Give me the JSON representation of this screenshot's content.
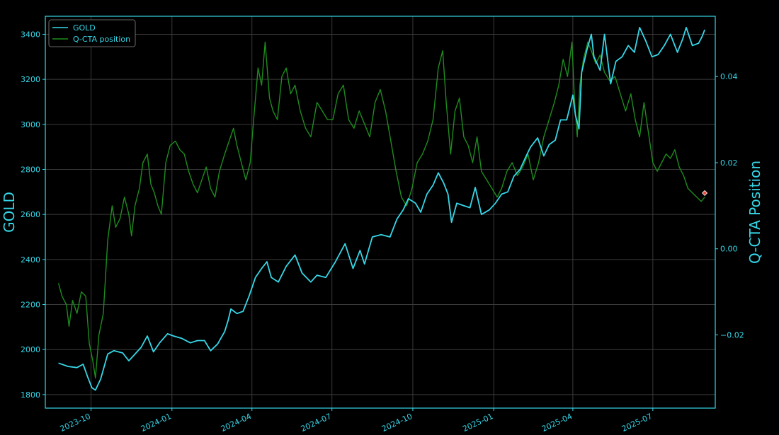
{
  "chart_data": {
    "type": "line",
    "title": "",
    "xlabel": "",
    "ylabel_left": "GOLD",
    "ylabel_right": "Q-CTA Position",
    "xlim": [
      "2023-08-10",
      "2025-09-10"
    ],
    "ylim_left": [
      1740,
      3480
    ],
    "ylim_right": [
      -0.037,
      0.054
    ],
    "x_ticks": [
      "2023-10",
      "2024-01",
      "2024-04",
      "2024-07",
      "2024-10",
      "2025-01",
      "2025-04",
      "2025-07"
    ],
    "x_tick_dates": [
      "2023-10-01",
      "2024-01-01",
      "2024-04-01",
      "2024-07-01",
      "2024-10-01",
      "2025-01-01",
      "2025-04-01",
      "2025-07-01"
    ],
    "y_ticks_left": [
      1800,
      2000,
      2200,
      2400,
      2600,
      2800,
      3000,
      3200,
      3400
    ],
    "y_ticks_right": [
      -0.02,
      0.0,
      0.02,
      0.04
    ],
    "y_tick_labels_right": [
      "−0.02",
      "0.00",
      "0.02",
      "0.04"
    ],
    "grid": true,
    "legend_position": "top-left",
    "colors": {
      "background": "#000000",
      "gold": "#36d7e8",
      "cta": "#1e8c1e",
      "axis": "#36d7e8",
      "grid": "#3a3a3a",
      "marker": "#e8463c"
    },
    "series": [
      {
        "name": "GOLD",
        "axis": "left",
        "points": [
          [
            "2023-08-25",
            1940
          ],
          [
            "2023-09-05",
            1925
          ],
          [
            "2023-09-15",
            1920
          ],
          [
            "2023-09-22",
            1935
          ],
          [
            "2023-09-27",
            1880
          ],
          [
            "2023-10-02",
            1830
          ],
          [
            "2023-10-06",
            1820
          ],
          [
            "2023-10-12",
            1870
          ],
          [
            "2023-10-20",
            1980
          ],
          [
            "2023-10-27",
            1995
          ],
          [
            "2023-11-06",
            1985
          ],
          [
            "2023-11-13",
            1950
          ],
          [
            "2023-11-20",
            1980
          ],
          [
            "2023-11-27",
            2010
          ],
          [
            "2023-12-04",
            2060
          ],
          [
            "2023-12-11",
            1990
          ],
          [
            "2023-12-18",
            2030
          ],
          [
            "2023-12-27",
            2070
          ],
          [
            "2024-01-03",
            2060
          ],
          [
            "2024-01-12",
            2050
          ],
          [
            "2024-01-22",
            2030
          ],
          [
            "2024-01-30",
            2040
          ],
          [
            "2024-02-07",
            2040
          ],
          [
            "2024-02-14",
            1995
          ],
          [
            "2024-02-22",
            2025
          ],
          [
            "2024-03-01",
            2080
          ],
          [
            "2024-03-05",
            2130
          ],
          [
            "2024-03-08",
            2180
          ],
          [
            "2024-03-15",
            2160
          ],
          [
            "2024-03-22",
            2170
          ],
          [
            "2024-03-29",
            2240
          ],
          [
            "2024-04-05",
            2320
          ],
          [
            "2024-04-12",
            2360
          ],
          [
            "2024-04-18",
            2390
          ],
          [
            "2024-04-23",
            2320
          ],
          [
            "2024-05-01",
            2300
          ],
          [
            "2024-05-10",
            2370
          ],
          [
            "2024-05-20",
            2420
          ],
          [
            "2024-05-28",
            2340
          ],
          [
            "2024-06-07",
            2300
          ],
          [
            "2024-06-14",
            2330
          ],
          [
            "2024-06-24",
            2320
          ],
          [
            "2024-07-05",
            2390
          ],
          [
            "2024-07-16",
            2470
          ],
          [
            "2024-07-25",
            2360
          ],
          [
            "2024-08-02",
            2440
          ],
          [
            "2024-08-07",
            2380
          ],
          [
            "2024-08-16",
            2500
          ],
          [
            "2024-08-26",
            2510
          ],
          [
            "2024-09-05",
            2500
          ],
          [
            "2024-09-13",
            2580
          ],
          [
            "2024-09-20",
            2620
          ],
          [
            "2024-09-26",
            2670
          ],
          [
            "2024-10-04",
            2650
          ],
          [
            "2024-10-10",
            2610
          ],
          [
            "2024-10-17",
            2690
          ],
          [
            "2024-10-24",
            2730
          ],
          [
            "2024-10-30",
            2785
          ],
          [
            "2024-11-05",
            2740
          ],
          [
            "2024-11-10",
            2690
          ],
          [
            "2024-11-14",
            2565
          ],
          [
            "2024-11-20",
            2650
          ],
          [
            "2024-11-27",
            2640
          ],
          [
            "2024-12-05",
            2630
          ],
          [
            "2024-12-11",
            2720
          ],
          [
            "2024-12-18",
            2600
          ],
          [
            "2024-12-27",
            2620
          ],
          [
            "2025-01-03",
            2650
          ],
          [
            "2025-01-10",
            2690
          ],
          [
            "2025-01-17",
            2700
          ],
          [
            "2025-01-24",
            2770
          ],
          [
            "2025-01-31",
            2800
          ],
          [
            "2025-02-07",
            2860
          ],
          [
            "2025-02-12",
            2900
          ],
          [
            "2025-02-20",
            2940
          ],
          [
            "2025-02-27",
            2860
          ],
          [
            "2025-03-05",
            2910
          ],
          [
            "2025-03-12",
            2930
          ],
          [
            "2025-03-18",
            3020
          ],
          [
            "2025-03-25",
            3020
          ],
          [
            "2025-04-01",
            3130
          ],
          [
            "2025-04-04",
            3040
          ],
          [
            "2025-04-08",
            2980
          ],
          [
            "2025-04-11",
            3230
          ],
          [
            "2025-04-17",
            3330
          ],
          [
            "2025-04-22",
            3400
          ],
          [
            "2025-04-25",
            3300
          ],
          [
            "2025-05-02",
            3240
          ],
          [
            "2025-05-07",
            3400
          ],
          [
            "2025-05-14",
            3180
          ],
          [
            "2025-05-20",
            3280
          ],
          [
            "2025-05-27",
            3300
          ],
          [
            "2025-06-03",
            3350
          ],
          [
            "2025-06-10",
            3320
          ],
          [
            "2025-06-16",
            3430
          ],
          [
            "2025-06-23",
            3370
          ],
          [
            "2025-06-30",
            3300
          ],
          [
            "2025-07-07",
            3310
          ],
          [
            "2025-07-14",
            3350
          ],
          [
            "2025-07-21",
            3400
          ],
          [
            "2025-07-29",
            3320
          ],
          [
            "2025-08-04",
            3380
          ],
          [
            "2025-08-08",
            3430
          ],
          [
            "2025-08-15",
            3350
          ],
          [
            "2025-08-22",
            3360
          ],
          [
            "2025-08-26",
            3390
          ],
          [
            "2025-08-29",
            3420
          ]
        ]
      },
      {
        "name": "Q-CTA position",
        "axis": "right",
        "points": [
          [
            "2023-08-25",
            -0.008
          ],
          [
            "2023-08-29",
            -0.011
          ],
          [
            "2023-09-03",
            -0.013
          ],
          [
            "2023-09-06",
            -0.018
          ],
          [
            "2023-09-10",
            -0.012
          ],
          [
            "2023-09-15",
            -0.015
          ],
          [
            "2023-09-20",
            -0.01
          ],
          [
            "2023-09-25",
            -0.011
          ],
          [
            "2023-09-29",
            -0.022
          ],
          [
            "2023-10-03",
            -0.026
          ],
          [
            "2023-10-06",
            -0.03
          ],
          [
            "2023-10-10",
            -0.02
          ],
          [
            "2023-10-15",
            -0.015
          ],
          [
            "2023-10-20",
            0.002
          ],
          [
            "2023-10-25",
            0.01
          ],
          [
            "2023-10-29",
            0.005
          ],
          [
            "2023-11-03",
            0.007
          ],
          [
            "2023-11-08",
            0.012
          ],
          [
            "2023-11-13",
            0.008
          ],
          [
            "2023-11-16",
            0.003
          ],
          [
            "2023-11-20",
            0.01
          ],
          [
            "2023-11-25",
            0.014
          ],
          [
            "2023-11-29",
            0.02
          ],
          [
            "2023-12-04",
            0.022
          ],
          [
            "2023-12-08",
            0.015
          ],
          [
            "2023-12-12",
            0.013
          ],
          [
            "2023-12-16",
            0.01
          ],
          [
            "2023-12-20",
            0.008
          ],
          [
            "2023-12-25",
            0.02
          ],
          [
            "2023-12-30",
            0.024
          ],
          [
            "2024-01-05",
            0.025
          ],
          [
            "2024-01-10",
            0.023
          ],
          [
            "2024-01-15",
            0.022
          ],
          [
            "2024-01-20",
            0.018
          ],
          [
            "2024-01-25",
            0.015
          ],
          [
            "2024-01-30",
            0.013
          ],
          [
            "2024-02-04",
            0.016
          ],
          [
            "2024-02-09",
            0.019
          ],
          [
            "2024-02-14",
            0.014
          ],
          [
            "2024-02-19",
            0.012
          ],
          [
            "2024-02-24",
            0.018
          ],
          [
            "2024-03-01",
            0.022
          ],
          [
            "2024-03-06",
            0.025
          ],
          [
            "2024-03-11",
            0.028
          ],
          [
            "2024-03-15",
            0.024
          ],
          [
            "2024-03-20",
            0.02
          ],
          [
            "2024-03-25",
            0.016
          ],
          [
            "2024-03-30",
            0.02
          ],
          [
            "2024-04-03",
            0.03
          ],
          [
            "2024-04-08",
            0.042
          ],
          [
            "2024-04-12",
            0.038
          ],
          [
            "2024-04-16",
            0.048
          ],
          [
            "2024-04-21",
            0.035
          ],
          [
            "2024-04-25",
            0.032
          ],
          [
            "2024-04-30",
            0.03
          ],
          [
            "2024-05-05",
            0.04
          ],
          [
            "2024-05-10",
            0.042
          ],
          [
            "2024-05-15",
            0.036
          ],
          [
            "2024-05-20",
            0.038
          ],
          [
            "2024-05-26",
            0.032
          ],
          [
            "2024-06-01",
            0.028
          ],
          [
            "2024-06-07",
            0.026
          ],
          [
            "2024-06-14",
            0.034
          ],
          [
            "2024-06-20",
            0.032
          ],
          [
            "2024-06-26",
            0.03
          ],
          [
            "2024-07-02",
            0.03
          ],
          [
            "2024-07-08",
            0.036
          ],
          [
            "2024-07-14",
            0.038
          ],
          [
            "2024-07-20",
            0.03
          ],
          [
            "2024-07-26",
            0.028
          ],
          [
            "2024-08-01",
            0.032
          ],
          [
            "2024-08-07",
            0.029
          ],
          [
            "2024-08-13",
            0.026
          ],
          [
            "2024-08-19",
            0.034
          ],
          [
            "2024-08-25",
            0.037
          ],
          [
            "2024-08-31",
            0.032
          ],
          [
            "2024-09-06",
            0.025
          ],
          [
            "2024-09-12",
            0.018
          ],
          [
            "2024-09-18",
            0.012
          ],
          [
            "2024-09-24",
            0.01
          ],
          [
            "2024-09-30",
            0.014
          ],
          [
            "2024-10-06",
            0.02
          ],
          [
            "2024-10-12",
            0.022
          ],
          [
            "2024-10-18",
            0.025
          ],
          [
            "2024-10-24",
            0.03
          ],
          [
            "2024-10-30",
            0.042
          ],
          [
            "2024-11-04",
            0.046
          ],
          [
            "2024-11-08",
            0.034
          ],
          [
            "2024-11-13",
            0.022
          ],
          [
            "2024-11-18",
            0.032
          ],
          [
            "2024-11-23",
            0.035
          ],
          [
            "2024-11-28",
            0.026
          ],
          [
            "2024-12-03",
            0.024
          ],
          [
            "2024-12-08",
            0.02
          ],
          [
            "2024-12-13",
            0.026
          ],
          [
            "2024-12-18",
            0.018
          ],
          [
            "2024-12-24",
            0.016
          ],
          [
            "2024-12-30",
            0.014
          ],
          [
            "2025-01-05",
            0.012
          ],
          [
            "2025-01-10",
            0.014
          ],
          [
            "2025-01-16",
            0.018
          ],
          [
            "2025-01-22",
            0.02
          ],
          [
            "2025-01-28",
            0.017
          ],
          [
            "2025-02-03",
            0.019
          ],
          [
            "2025-02-09",
            0.022
          ],
          [
            "2025-02-15",
            0.016
          ],
          [
            "2025-02-21",
            0.02
          ],
          [
            "2025-02-27",
            0.026
          ],
          [
            "2025-03-05",
            0.03
          ],
          [
            "2025-03-11",
            0.034
          ],
          [
            "2025-03-16",
            0.038
          ],
          [
            "2025-03-21",
            0.044
          ],
          [
            "2025-03-26",
            0.04
          ],
          [
            "2025-03-31",
            0.048
          ],
          [
            "2025-04-03",
            0.034
          ],
          [
            "2025-04-06",
            0.026
          ],
          [
            "2025-04-09",
            0.038
          ],
          [
            "2025-04-13",
            0.044
          ],
          [
            "2025-04-18",
            0.048
          ],
          [
            "2025-04-22",
            0.046
          ],
          [
            "2025-04-27",
            0.043
          ],
          [
            "2025-05-02",
            0.045
          ],
          [
            "2025-05-07",
            0.041
          ],
          [
            "2025-05-13",
            0.039
          ],
          [
            "2025-05-19",
            0.04
          ],
          [
            "2025-05-25",
            0.036
          ],
          [
            "2025-05-31",
            0.032
          ],
          [
            "2025-06-06",
            0.036
          ],
          [
            "2025-06-11",
            0.03
          ],
          [
            "2025-06-16",
            0.026
          ],
          [
            "2025-06-21",
            0.034
          ],
          [
            "2025-06-26",
            0.027
          ],
          [
            "2025-07-01",
            0.02
          ],
          [
            "2025-07-06",
            0.018
          ],
          [
            "2025-07-11",
            0.02
          ],
          [
            "2025-07-16",
            0.022
          ],
          [
            "2025-07-21",
            0.021
          ],
          [
            "2025-07-26",
            0.023
          ],
          [
            "2025-07-31",
            0.019
          ],
          [
            "2025-08-05",
            0.017
          ],
          [
            "2025-08-10",
            0.014
          ],
          [
            "2025-08-15",
            0.013
          ],
          [
            "2025-08-20",
            0.012
          ],
          [
            "2025-08-25",
            0.011
          ],
          [
            "2025-08-29",
            0.012
          ]
        ]
      }
    ],
    "marker": {
      "x": "2025-08-29",
      "y": 2695,
      "axis": "left",
      "shape": "diamond"
    },
    "legend": [
      "GOLD",
      "Q-CTA position"
    ]
  }
}
